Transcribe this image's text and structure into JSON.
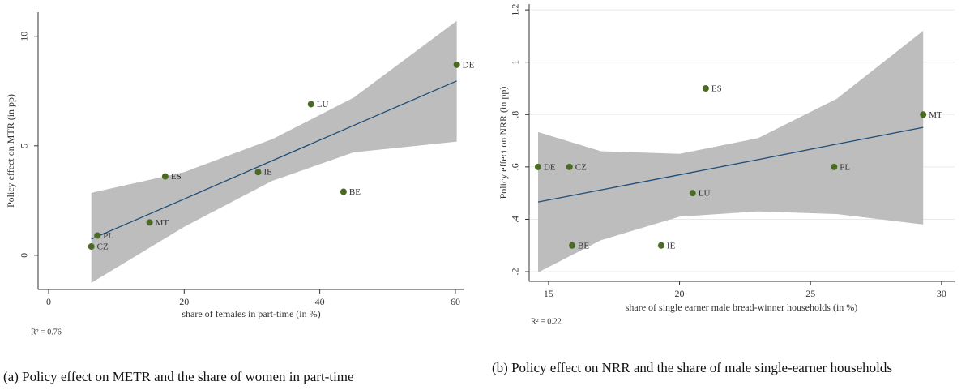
{
  "chart_data": [
    {
      "type": "scatter",
      "x_label": "share of females in part-time (in %)",
      "y_label": "Policy effect on MTR (in pp)",
      "note": "R² = 0.76",
      "caption": "(a) Policy effect on METR and the share of women in part-time",
      "labels": [
        "CZ",
        "PL",
        "MT",
        "ES",
        "IE",
        "LU",
        "BE",
        "DE"
      ],
      "x": [
        6.3,
        7.2,
        14.9,
        17.2,
        30.9,
        38.7,
        43.5,
        60.2
      ],
      "values": [
        0.4,
        0.9,
        1.5,
        3.6,
        3.8,
        6.9,
        2.9,
        8.7
      ],
      "color": "#4b6b24",
      "label_color": "#7a8a3e",
      "fit": {
        "x": [
          6.3,
          20,
          33,
          45,
          60.2
        ],
        "y": [
          0.74,
          2.57,
          4.32,
          5.93,
          7.96
        ],
        "lower": [
          -1.26,
          1.3,
          3.4,
          4.7,
          5.19
        ],
        "upper": [
          2.85,
          3.8,
          5.3,
          7.2,
          10.7
        ],
        "color": "#1f4e79",
        "band_color": "#bdbdbd"
      },
      "xlim": [
        -1.55,
        61.2
      ],
      "ylim": [
        -1.56,
        11.1
      ],
      "xticks": [
        0,
        20,
        40,
        60
      ],
      "yticks": [
        0,
        5,
        10
      ],
      "grid": false
    },
    {
      "type": "scatter",
      "x_label": "share of single earner male bread-winner households (in %)",
      "y_label": "Policy effect on NRR (in pp)",
      "note": "R² = 0.22",
      "caption": "(b) Policy effect on NRR and the share of male single-earner households",
      "labels": [
        "DE",
        "CZ",
        "BE",
        "IE",
        "LU",
        "ES",
        "PL",
        "MT"
      ],
      "x": [
        14.6,
        15.8,
        15.9,
        19.3,
        20.5,
        21,
        25.9,
        29.3
      ],
      "values": [
        0.6,
        0.6,
        0.3,
        0.3,
        0.5,
        0.9,
        0.6,
        0.8
      ],
      "color": "#4b6b24",
      "label_color": "#7a8a3e",
      "fit": {
        "x": [
          14.6,
          17,
          20,
          23,
          26,
          29.3
        ],
        "y": [
          0.466,
          0.512,
          0.57,
          0.628,
          0.687,
          0.751
        ],
        "lower": [
          0.197,
          0.32,
          0.41,
          0.43,
          0.42,
          0.38
        ],
        "upper": [
          0.733,
          0.66,
          0.65,
          0.71,
          0.86,
          1.12
        ],
        "color": "#1f4e79",
        "band_color": "#bdbdbd"
      },
      "xlim": [
        14.26,
        30.5
      ],
      "ylim": [
        0.163,
        1.222
      ],
      "xticks": [
        15,
        20,
        25,
        30
      ],
      "yticks": [
        {
          "value": 0.2,
          "label": ".2"
        },
        {
          "value": 0.4,
          "label": ".4"
        },
        {
          "value": 0.6,
          "label": ".6"
        },
        {
          "value": 0.8,
          "label": ".8"
        },
        1,
        {
          "value": 1.2,
          "label": "1.2"
        }
      ],
      "grid": true
    }
  ]
}
